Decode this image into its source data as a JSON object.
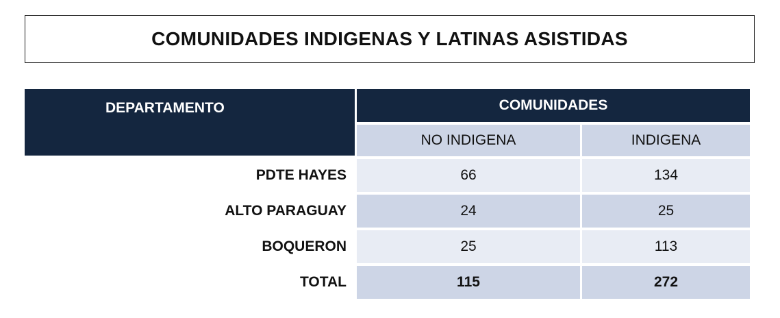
{
  "title": "COMUNIDADES INDIGENAS Y LATINAS ASISTIDAS",
  "table": {
    "header_departamento": "DEPARTAMENTO",
    "header_comunidades": "COMUNIDADES",
    "subheaders": [
      "NO INDIGENA",
      "INDIGENA"
    ],
    "rows": [
      {
        "departamento": "PDTE HAYES",
        "no_indigena": "66",
        "indigena": "134"
      },
      {
        "departamento": "ALTO PARAGUAY",
        "no_indigena": "24",
        "indigena": "25"
      },
      {
        "departamento": "BOQUERON",
        "no_indigena": "25",
        "indigena": "113"
      }
    ],
    "total": {
      "label": "TOTAL",
      "no_indigena": "115",
      "indigena": "272"
    }
  },
  "colors": {
    "header_bg": "#14263f",
    "row_light": "#e8ecf4",
    "row_dark": "#cdd5e6"
  }
}
